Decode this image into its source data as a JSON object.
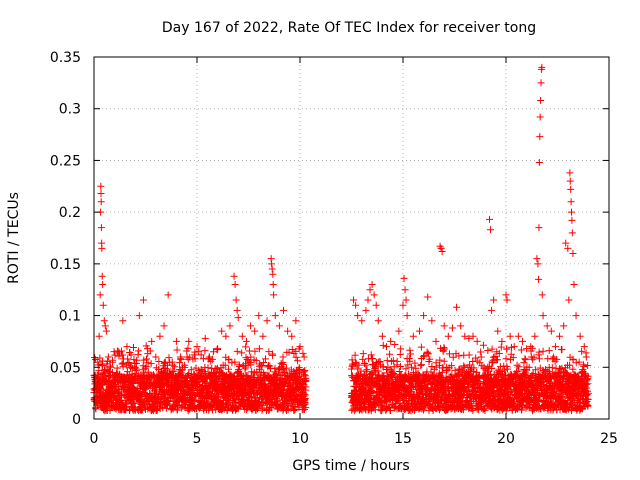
{
  "chart_data": {
    "type": "scatter",
    "title": "Day 167 of 2022, Rate Of TEC Index for receiver tong",
    "xlabel": "GPS time / hours",
    "ylabel": "ROTI / TECUs",
    "xlim": [
      0,
      25
    ],
    "ylim": [
      0,
      0.35
    ],
    "x_ticks": [
      0,
      5,
      10,
      15,
      20,
      25
    ],
    "x_tick_labels": [
      "0",
      "5",
      "10",
      "15",
      "20",
      "25"
    ],
    "y_ticks": [
      0,
      0.05,
      0.1,
      0.15,
      0.2,
      0.25,
      0.3,
      0.35
    ],
    "y_tick_labels": [
      "0",
      "0.05",
      "0.1",
      "0.15",
      "0.2",
      "0.25",
      "0.3",
      "0.35"
    ],
    "grid": true,
    "marker": "+",
    "color": "#ff0000",
    "series": [
      {
        "name": "ROTI",
        "points": [
          [
            0.05,
            0.04
          ],
          [
            0.12,
            0.03
          ],
          [
            0.18,
            0.055
          ],
          [
            0.25,
            0.08
          ],
          [
            0.3,
            0.12
          ],
          [
            0.32,
            0.2
          ],
          [
            0.33,
            0.225
          ],
          [
            0.34,
            0.218
          ],
          [
            0.35,
            0.21
          ],
          [
            0.36,
            0.185
          ],
          [
            0.37,
            0.17
          ],
          [
            0.38,
            0.165
          ],
          [
            0.4,
            0.138
          ],
          [
            0.42,
            0.13
          ],
          [
            0.45,
            0.11
          ],
          [
            0.5,
            0.095
          ],
          [
            0.55,
            0.09
          ],
          [
            0.6,
            0.085
          ],
          [
            0.7,
            0.06
          ],
          [
            0.8,
            0.05
          ],
          [
            0.9,
            0.045
          ],
          [
            1.0,
            0.042
          ],
          [
            1.2,
            0.065
          ],
          [
            1.4,
            0.095
          ],
          [
            1.6,
            0.07
          ],
          [
            1.8,
            0.062
          ],
          [
            2.0,
            0.05
          ],
          [
            2.2,
            0.1
          ],
          [
            2.4,
            0.115
          ],
          [
            2.6,
            0.068
          ],
          [
            2.8,
            0.075
          ],
          [
            3.0,
            0.06
          ],
          [
            3.2,
            0.08
          ],
          [
            3.4,
            0.09
          ],
          [
            3.6,
            0.12
          ],
          [
            3.8,
            0.055
          ],
          [
            4.0,
            0.075
          ],
          [
            4.2,
            0.06
          ],
          [
            4.4,
            0.052
          ],
          [
            4.6,
            0.075
          ],
          [
            4.8,
            0.058
          ],
          [
            5.0,
            0.07
          ],
          [
            5.2,
            0.062
          ],
          [
            5.4,
            0.078
          ],
          [
            5.6,
            0.06
          ],
          [
            5.8,
            0.065
          ],
          [
            6.0,
            0.068
          ],
          [
            6.2,
            0.085
          ],
          [
            6.4,
            0.08
          ],
          [
            6.6,
            0.09
          ],
          [
            6.8,
            0.138
          ],
          [
            6.85,
            0.13
          ],
          [
            6.9,
            0.115
          ],
          [
            6.95,
            0.105
          ],
          [
            7.0,
            0.098
          ],
          [
            7.2,
            0.08
          ],
          [
            7.4,
            0.075
          ],
          [
            7.6,
            0.09
          ],
          [
            7.8,
            0.085
          ],
          [
            8.0,
            0.1
          ],
          [
            8.2,
            0.08
          ],
          [
            8.4,
            0.095
          ],
          [
            8.6,
            0.155
          ],
          [
            8.62,
            0.15
          ],
          [
            8.65,
            0.145
          ],
          [
            8.68,
            0.14
          ],
          [
            8.7,
            0.13
          ],
          [
            8.72,
            0.12
          ],
          [
            8.8,
            0.1
          ],
          [
            9.0,
            0.09
          ],
          [
            9.2,
            0.105
          ],
          [
            9.4,
            0.085
          ],
          [
            9.6,
            0.08
          ],
          [
            9.8,
            0.095
          ],
          [
            10.0,
            0.07
          ],
          [
            10.2,
            0.06
          ],
          [
            12.6,
            0.115
          ],
          [
            12.7,
            0.11
          ],
          [
            12.8,
            0.1
          ],
          [
            13.0,
            0.095
          ],
          [
            13.2,
            0.105
          ],
          [
            13.3,
            0.115
          ],
          [
            13.4,
            0.125
          ],
          [
            13.5,
            0.13
          ],
          [
            13.6,
            0.12
          ],
          [
            13.7,
            0.11
          ],
          [
            13.8,
            0.095
          ],
          [
            14.0,
            0.08
          ],
          [
            14.2,
            0.07
          ],
          [
            14.4,
            0.075
          ],
          [
            14.6,
            0.072
          ],
          [
            14.8,
            0.085
          ],
          [
            15.0,
            0.11
          ],
          [
            15.05,
            0.136
          ],
          [
            15.1,
            0.125
          ],
          [
            15.15,
            0.115
          ],
          [
            15.2,
            0.1
          ],
          [
            15.5,
            0.08
          ],
          [
            15.8,
            0.085
          ],
          [
            16.0,
            0.1
          ],
          [
            16.2,
            0.118
          ],
          [
            16.4,
            0.095
          ],
          [
            16.6,
            0.075
          ],
          [
            16.8,
            0.167
          ],
          [
            16.85,
            0.165
          ],
          [
            16.9,
            0.162
          ],
          [
            17.0,
            0.09
          ],
          [
            17.2,
            0.08
          ],
          [
            17.4,
            0.088
          ],
          [
            17.6,
            0.108
          ],
          [
            17.8,
            0.09
          ],
          [
            18.0,
            0.08
          ],
          [
            18.2,
            0.078
          ],
          [
            18.4,
            0.08
          ],
          [
            18.6,
            0.075
          ],
          [
            18.8,
            0.06
          ],
          [
            19.2,
            0.193
          ],
          [
            19.25,
            0.183
          ],
          [
            19.3,
            0.105
          ],
          [
            19.4,
            0.115
          ],
          [
            19.6,
            0.085
          ],
          [
            19.8,
            0.075
          ],
          [
            20.0,
            0.12
          ],
          [
            20.05,
            0.115
          ],
          [
            20.2,
            0.08
          ],
          [
            20.4,
            0.07
          ],
          [
            20.6,
            0.08
          ],
          [
            20.8,
            0.075
          ],
          [
            21.0,
            0.068
          ],
          [
            21.2,
            0.07
          ],
          [
            21.4,
            0.08
          ],
          [
            21.5,
            0.155
          ],
          [
            21.55,
            0.15
          ],
          [
            21.58,
            0.135
          ],
          [
            21.6,
            0.185
          ],
          [
            21.62,
            0.248
          ],
          [
            21.64,
            0.273
          ],
          [
            21.66,
            0.292
          ],
          [
            21.68,
            0.308
          ],
          [
            21.7,
            0.325
          ],
          [
            21.72,
            0.338
          ],
          [
            21.74,
            0.34
          ],
          [
            21.76,
            0.12
          ],
          [
            21.8,
            0.1
          ],
          [
            22.0,
            0.09
          ],
          [
            22.2,
            0.085
          ],
          [
            22.4,
            0.07
          ],
          [
            22.6,
            0.08
          ],
          [
            22.8,
            0.09
          ],
          [
            22.9,
            0.17
          ],
          [
            23.0,
            0.165
          ],
          [
            23.05,
            0.115
          ],
          [
            23.1,
            0.238
          ],
          [
            23.12,
            0.23
          ],
          [
            23.14,
            0.222
          ],
          [
            23.16,
            0.21
          ],
          [
            23.18,
            0.2
          ],
          [
            23.2,
            0.192
          ],
          [
            23.22,
            0.18
          ],
          [
            23.25,
            0.16
          ],
          [
            23.3,
            0.13
          ],
          [
            23.4,
            0.1
          ],
          [
            23.6,
            0.08
          ],
          [
            23.8,
            0.07
          ],
          [
            23.9,
            0.06
          ]
        ]
      }
    ]
  }
}
